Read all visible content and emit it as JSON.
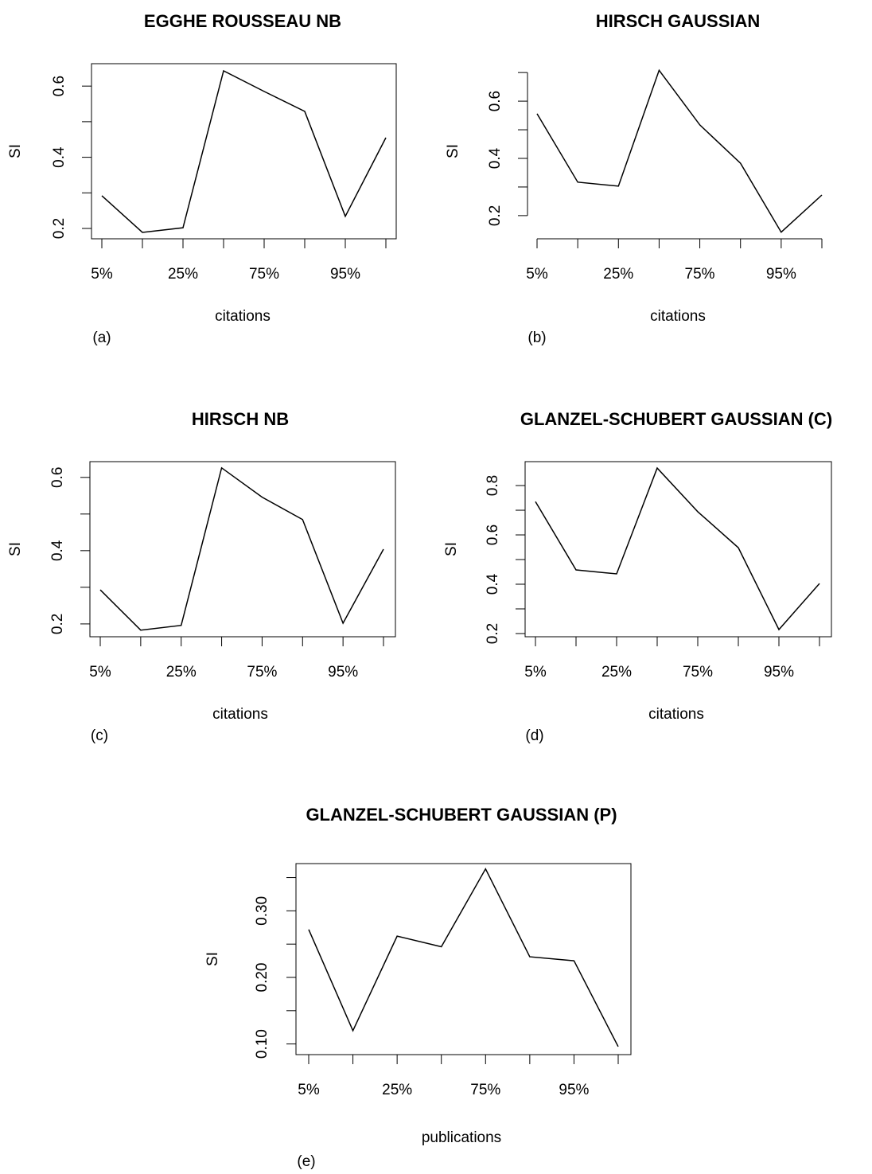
{
  "chart_data": [
    {
      "type": "line",
      "title": "EGGHE ROUSSEAU NB",
      "xlabel": "citations",
      "ylabel": "SI",
      "annotation": "(a)",
      "categories": [
        "5%",
        null,
        "25%",
        null,
        "75%",
        null,
        "95%",
        null
      ],
      "series": [
        {
          "color": "#000000",
          "values": [
            0.292,
            0.189,
            0.202,
            0.643,
            0.585,
            0.529,
            0.234,
            0.455
          ]
        }
      ],
      "ylim": [
        0.171,
        0.663
      ],
      "yticks": [
        0.2,
        0.4,
        0.6
      ],
      "yminor": [
        0.3,
        0.5
      ],
      "box": true
    },
    {
      "type": "line",
      "title": "HIRSCH GAUSSIAN",
      "xlabel": "citations",
      "ylabel": "SI",
      "annotation": "(b)",
      "categories": [
        "5%",
        null,
        "25%",
        null,
        "75%",
        null,
        "95%",
        null
      ],
      "series": [
        {
          "color": "#000000",
          "values": [
            0.556,
            0.317,
            0.303,
            0.708,
            0.517,
            0.383,
            0.142,
            0.272
          ]
        }
      ],
      "ylim": [
        0.119,
        0.731
      ],
      "yticks": [
        0.2,
        0.4,
        0.6
      ],
      "yminor": [
        0.3,
        0.5,
        0.7
      ],
      "box": false
    },
    {
      "type": "line",
      "title": "HIRSCH NB",
      "xlabel": "citations",
      "ylabel": "SI",
      "annotation": "(c)",
      "categories": [
        "5%",
        null,
        "25%",
        null,
        "75%",
        null,
        "95%",
        null
      ],
      "series": [
        {
          "color": "#000000",
          "values": [
            0.293,
            0.183,
            0.196,
            0.626,
            0.546,
            0.485,
            0.202,
            0.404
          ]
        }
      ],
      "ylim": [
        0.165,
        0.643
      ],
      "yticks": [
        0.2,
        0.4,
        0.6
      ],
      "yminor": [
        0.3,
        0.5
      ],
      "box": true
    },
    {
      "type": "line",
      "title": "GLANZEL-SCHUBERT GAUSSIAN (C)",
      "xlabel": "citations",
      "ylabel": "SI",
      "annotation": "(d)",
      "categories": [
        "5%",
        null,
        "25%",
        null,
        "75%",
        null,
        "95%",
        null
      ],
      "series": [
        {
          "color": "#000000",
          "values": [
            0.735,
            0.458,
            0.442,
            0.871,
            0.694,
            0.548,
            0.216,
            0.403
          ]
        }
      ],
      "ylim": [
        0.187,
        0.897
      ],
      "yticks": [
        0.2,
        0.4,
        0.6,
        0.8
      ],
      "yminor": [
        0.3,
        0.5,
        0.7
      ],
      "box": true
    },
    {
      "type": "line",
      "title": "GLANZEL-SCHUBERT GAUSSIAN (P)",
      "xlabel": "publications",
      "ylabel": "SI",
      "annotation": "(e)",
      "categories": [
        "5%",
        null,
        "25%",
        null,
        "75%",
        null,
        "95%",
        null
      ],
      "series": [
        {
          "color": "#000000",
          "values": [
            0.272,
            0.12,
            0.262,
            0.246,
            0.363,
            0.231,
            0.225,
            0.096
          ]
        }
      ],
      "ylim": [
        0.084,
        0.371
      ],
      "yticks": [
        {
          "value": 0.1,
          "label": "0.10"
        },
        {
          "value": 0.2,
          "label": "0.20"
        },
        {
          "value": 0.3,
          "label": "0.30"
        }
      ],
      "yminor": [
        0.15,
        0.25,
        0.35
      ],
      "box": true
    }
  ]
}
